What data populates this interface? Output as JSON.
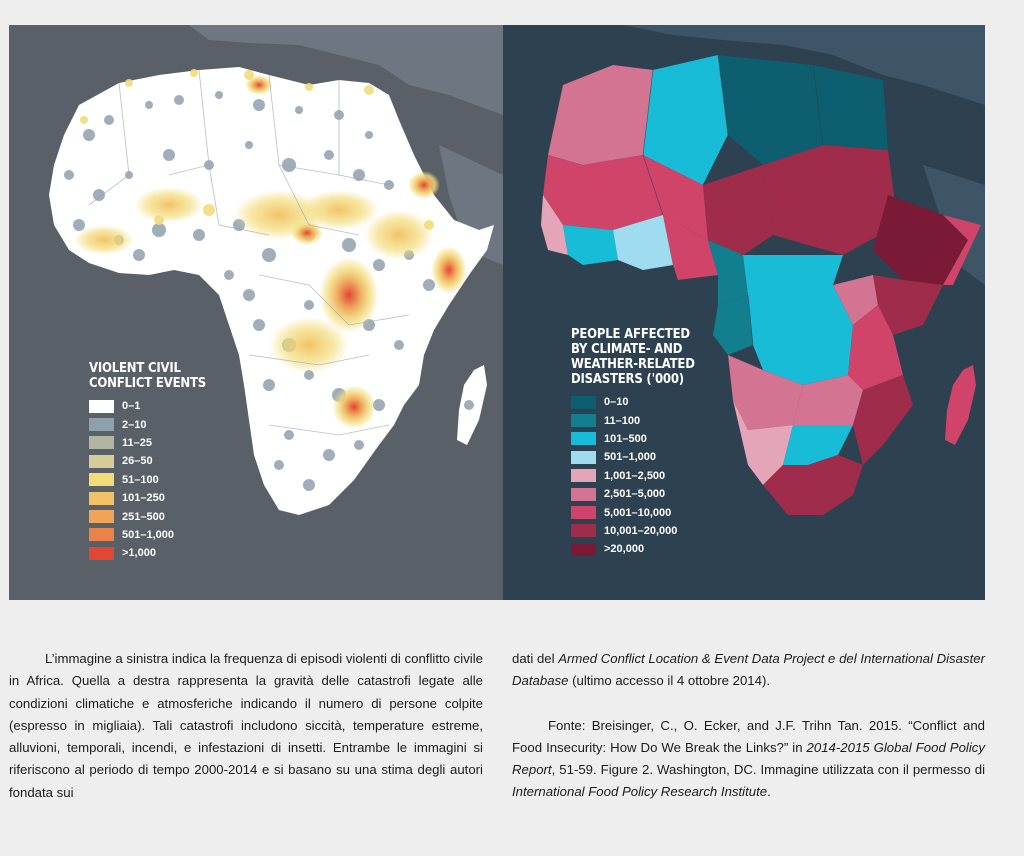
{
  "left_map": {
    "legend": {
      "title_lines": [
        "VIOLENT CIVIL",
        "CONFLICT EVENTS"
      ],
      "items": [
        {
          "label": "0–1",
          "color": "#ffffff"
        },
        {
          "label": "2–10",
          "color": "#8fa0ad"
        },
        {
          "label": "11–25",
          "color": "#b3b5a3"
        },
        {
          "label": "26–50",
          "color": "#d5cc98"
        },
        {
          "label": "51–100",
          "color": "#f2dc7a"
        },
        {
          "label": "101–250",
          "color": "#f3c266"
        },
        {
          "label": "251–500",
          "color": "#efa45a"
        },
        {
          "label": "501–1,000",
          "color": "#e9834a"
        },
        {
          "label": ">1,000",
          "color": "#e14734"
        }
      ]
    }
  },
  "right_map": {
    "legend": {
      "title_lines": [
        "PEOPLE AFFECTED",
        "BY CLIMATE- AND",
        "WEATHER-RELATED",
        "DISASTERS ('000)"
      ],
      "items": [
        {
          "label": "0–10",
          "color": "#0d5e6e"
        },
        {
          "label": "11–100",
          "color": "#127f8e"
        },
        {
          "label": "101–500",
          "color": "#19bcd6"
        },
        {
          "label": "501–1,000",
          "color": "#9fdcf0"
        },
        {
          "label": "1,001–2,500",
          "color": "#e3a5b7"
        },
        {
          "label": "2,501–5,000",
          "color": "#d37492"
        },
        {
          "label": "5,001–10,000",
          "color": "#cf4468"
        },
        {
          "label": "10,001–20,000",
          "color": "#a02c4c"
        },
        {
          "label": ">20,000",
          "color": "#7a1a36"
        }
      ]
    }
  },
  "caption": {
    "left_paragraph": "L’immagine a sinistra indica la frequenza di episodi violenti di conflitto civile in Africa. Quella a destra rappresenta la gravità delle catastrofi legate alle condizioni climatiche e atmosferiche indicando il numero di persone colpite (espresso in migliaia). Tali catastrofi includono siccità, temperature estreme, alluvioni, temporali, incendi, e infestazioni di insetti. Entrambe le immagini si riferiscono al periodo di tempo 2000-2014 e si basano su una stima degli autori fondata sui",
    "right_p1_start": "dati del ",
    "right_p1_italic": "Armed Conflict Location & Event Data Project e del International Disaster Database",
    "right_p1_end": " (ultimo accesso il 4 ottobre 2014).",
    "source_start": "Fonte: Breisinger, C., O. Ecker, and J.F. Trihn Tan. 2015. “Conflict and Food Insecurity: How Do We Break the Links?” in ",
    "source_italic1": "2014-2015 Global Food Policy Report",
    "source_mid": ", 51-59. Figure 2. Washington, DC. Immagine utilizzata con il permesso di ",
    "source_italic2": "International Food Policy Research Institute",
    "source_end": "."
  }
}
